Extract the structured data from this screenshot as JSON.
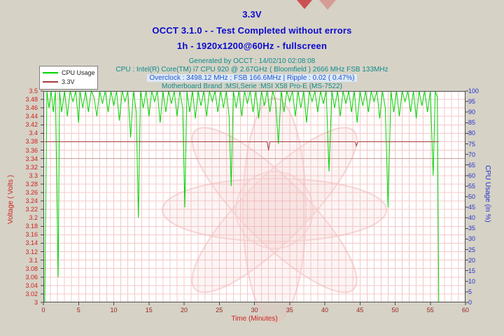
{
  "header": {
    "title": "3.3V",
    "subtitle": "OCCT 3.1.0 -  - Test Completed without errors",
    "subtitle2": "1h - 1920x1200@60Hz - fullscreen",
    "info1": "Generated by OCCT : 14/02/10 02:08:08",
    "info2": "CPU : Intel(R) Core(TM) i7 CPU 920 @ 2.67GHz ( Bloomfield ) 2666 MHz FSB 133MHz",
    "info3": "Overclock : 3498.12 MHz ; FSB 166.6MHz | Ripple : 0.02 ( 0.47%)",
    "info4": "Motherboard Brand :MSI,Serie :MSI X58 Pro-E (MS-7522)"
  },
  "legend": {
    "items": [
      {
        "label": "CPU Usage",
        "color": "#00d400"
      },
      {
        "label": "3.3V",
        "color": "#a63d3d"
      }
    ]
  },
  "chart_data": {
    "type": "line",
    "title": "3.3V",
    "grid": true,
    "grid_color": "#f5c8c8",
    "reference_line": {
      "value": 3.34,
      "color": "#cf9999"
    },
    "x_axis": {
      "label": "Time (Minutes)",
      "range": [
        0,
        60
      ],
      "ticks": [
        "0",
        "5",
        "10",
        "15",
        "20",
        "25",
        "30",
        "35",
        "40",
        "45",
        "50",
        "55",
        "60"
      ]
    },
    "left_axis": {
      "label": "Voltage ( Volts )",
      "range": [
        3.0,
        3.5
      ],
      "ticks": [
        "3",
        "3.02",
        "3.04",
        "3.06",
        "3.08",
        "3.1",
        "3.12",
        "3.14",
        "3.16",
        "3.18",
        "3.2",
        "3.22",
        "3.24",
        "3.26",
        "3.28",
        "3.3",
        "3.32",
        "3.34",
        "3.36",
        "3.38",
        "3.4",
        "3.42",
        "3.44",
        "3.46",
        "3.48",
        "3.5"
      ]
    },
    "right_axis": {
      "label": "CPU Usage (in %)",
      "range": [
        0,
        100
      ],
      "ticks": [
        "0",
        "5",
        "10",
        "15",
        "20",
        "25",
        "30",
        "35",
        "40",
        "45",
        "50",
        "55",
        "60",
        "65",
        "70",
        "75",
        "80",
        "85",
        "90",
        "95",
        "100"
      ]
    },
    "series": [
      {
        "name": "CPU Usage",
        "axis": "right",
        "color": "#00d400",
        "points": [
          [
            0.2,
            0
          ],
          [
            0.5,
            100
          ],
          [
            0.8,
            92
          ],
          [
            1.1,
            100
          ],
          [
            1.4,
            90
          ],
          [
            1.7,
            100
          ],
          [
            1.9,
            55
          ],
          [
            2.1,
            12
          ],
          [
            2.3,
            100
          ],
          [
            2.6,
            90
          ],
          [
            3,
            100
          ],
          [
            3.4,
            88
          ],
          [
            3.8,
            100
          ],
          [
            4.2,
            95
          ],
          [
            4.6,
            100
          ],
          [
            5,
            85
          ],
          [
            5.2,
            100
          ],
          [
            5.6,
            92
          ],
          [
            6,
            100
          ],
          [
            6.4,
            90
          ],
          [
            6.8,
            100
          ],
          [
            7.2,
            97
          ],
          [
            7.6,
            88
          ],
          [
            8,
            100
          ],
          [
            8.4,
            94
          ],
          [
            8.8,
            100
          ],
          [
            9.2,
            90
          ],
          [
            9.6,
            100
          ],
          [
            10,
            93
          ],
          [
            10.4,
            100
          ],
          [
            10.8,
            86
          ],
          [
            11.2,
            100
          ],
          [
            11.6,
            95
          ],
          [
            12,
            100
          ],
          [
            12.4,
            78
          ],
          [
            12.8,
            100
          ],
          [
            13.2,
            90
          ],
          [
            13.5,
            40
          ],
          [
            13.8,
            100
          ],
          [
            14.2,
            92
          ],
          [
            14.6,
            100
          ],
          [
            15,
            88
          ],
          [
            15.4,
            100
          ],
          [
            15.8,
            95
          ],
          [
            16.2,
            100
          ],
          [
            16.6,
            85
          ],
          [
            17,
            100
          ],
          [
            17.4,
            90
          ],
          [
            17.8,
            100
          ],
          [
            18.2,
            94
          ],
          [
            18.6,
            100
          ],
          [
            19,
            88
          ],
          [
            19.4,
            100
          ],
          [
            19.8,
            92
          ],
          [
            20.1,
            45
          ],
          [
            20.4,
            100
          ],
          [
            20.8,
            90
          ],
          [
            21.2,
            100
          ],
          [
            21.6,
            87
          ],
          [
            22,
            100
          ],
          [
            22.4,
            93
          ],
          [
            22.8,
            100
          ],
          [
            23.2,
            88
          ],
          [
            23.6,
            100
          ],
          [
            24,
            95
          ],
          [
            24.4,
            100
          ],
          [
            24.8,
            90
          ],
          [
            25.2,
            100
          ],
          [
            25.6,
            92
          ],
          [
            26,
            100
          ],
          [
            26.4,
            88
          ],
          [
            26.7,
            55
          ],
          [
            27,
            100
          ],
          [
            27.4,
            92
          ],
          [
            27.8,
            100
          ],
          [
            28.2,
            88
          ],
          [
            28.6,
            100
          ],
          [
            29,
            94
          ],
          [
            29.4,
            100
          ],
          [
            29.8,
            90
          ],
          [
            30.2,
            100
          ],
          [
            30.6,
            87
          ],
          [
            31,
            100
          ],
          [
            31.4,
            93
          ],
          [
            31.8,
            100
          ],
          [
            32.2,
            90
          ],
          [
            32.6,
            100
          ],
          [
            33,
            95
          ],
          [
            33.4,
            75
          ],
          [
            33.8,
            100
          ],
          [
            34.2,
            90
          ],
          [
            34.6,
            100
          ],
          [
            35,
            95
          ],
          [
            35.4,
            100
          ],
          [
            35.8,
            88
          ],
          [
            36.2,
            100
          ],
          [
            36.6,
            92
          ],
          [
            37,
            100
          ],
          [
            37.4,
            85
          ],
          [
            37.8,
            100
          ],
          [
            38.2,
            95
          ],
          [
            38.6,
            100
          ],
          [
            39,
            90
          ],
          [
            39.4,
            100
          ],
          [
            39.8,
            94
          ],
          [
            40.2,
            100
          ],
          [
            40.6,
            62
          ],
          [
            41,
            100
          ],
          [
            41.4,
            92
          ],
          [
            41.8,
            100
          ],
          [
            42.2,
            88
          ],
          [
            42.6,
            100
          ],
          [
            43,
            94
          ],
          [
            43.4,
            100
          ],
          [
            43.8,
            90
          ],
          [
            44.2,
            100
          ],
          [
            44.6,
            85
          ],
          [
            45,
            100
          ],
          [
            45.4,
            93
          ],
          [
            45.8,
            100
          ],
          [
            46.2,
            90
          ],
          [
            46.6,
            100
          ],
          [
            47,
            95
          ],
          [
            47.4,
            100
          ],
          [
            47.8,
            87
          ],
          [
            48.2,
            100
          ],
          [
            48.6,
            92
          ],
          [
            49,
            45
          ],
          [
            49.4,
            100
          ],
          [
            49.8,
            90
          ],
          [
            50.2,
            100
          ],
          [
            50.6,
            88
          ],
          [
            51,
            100
          ],
          [
            51.4,
            95
          ],
          [
            51.8,
            100
          ],
          [
            52.2,
            90
          ],
          [
            52.6,
            100
          ],
          [
            53,
            87
          ],
          [
            53.4,
            100
          ],
          [
            53.8,
            93
          ],
          [
            54.2,
            100
          ],
          [
            54.6,
            90
          ],
          [
            55,
            100
          ],
          [
            55.4,
            60
          ],
          [
            55.7,
            100
          ],
          [
            56,
            97
          ],
          [
            56.2,
            0
          ]
        ]
      },
      {
        "name": "3.3V",
        "axis": "left",
        "color": "#a63d3d",
        "points": [
          [
            0.2,
            3.38
          ],
          [
            31.8,
            3.38
          ],
          [
            32,
            3.36
          ],
          [
            32.2,
            3.38
          ],
          [
            44.3,
            3.38
          ],
          [
            44.5,
            3.37
          ],
          [
            44.7,
            3.38
          ],
          [
            56.2,
            3.38
          ]
        ]
      }
    ]
  }
}
